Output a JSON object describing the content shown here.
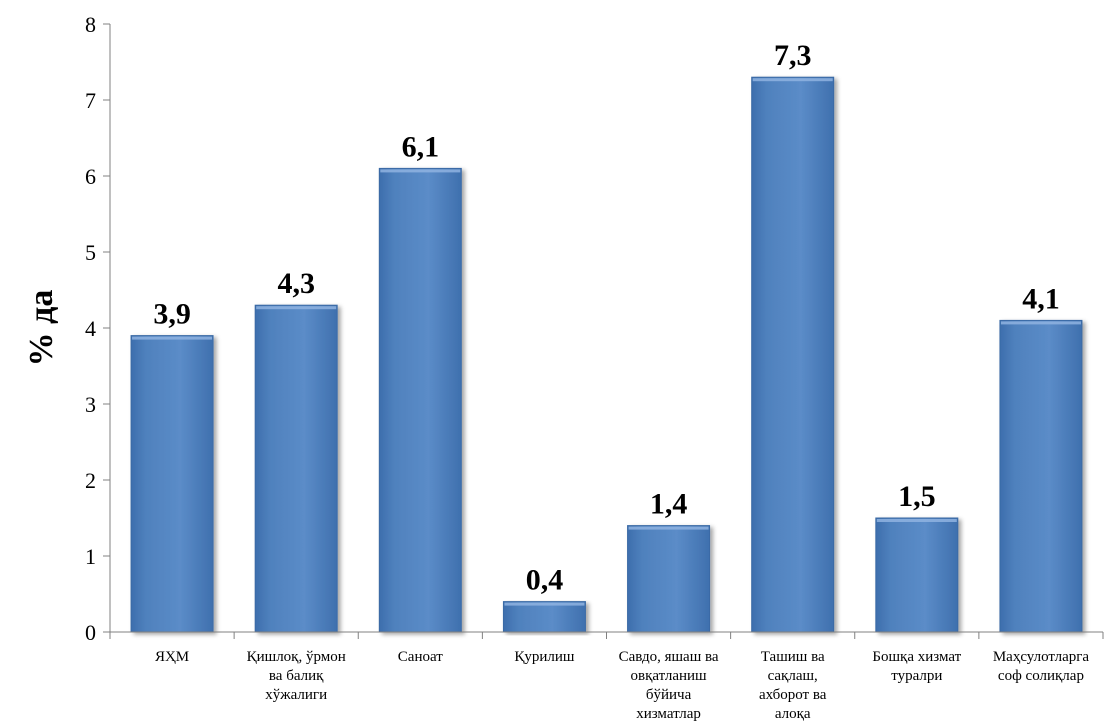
{
  "chart_data": {
    "type": "bar",
    "title": "",
    "xlabel": "",
    "ylabel": "% да",
    "ylim": [
      0,
      8
    ],
    "yticks": [
      0,
      1,
      2,
      3,
      4,
      5,
      6,
      7,
      8
    ],
    "grid": false,
    "legend": "none",
    "categories": [
      "ЯҲМ",
      "Қишлоқ, ўрмон ва балиқ хўжалиги",
      "Саноат",
      "Қурилиш",
      "Савдо, яшаш ва овқатланиш бўйича хизматлар",
      "Ташиш ва сақлаш, ахборот ва алоқа",
      "Бошқа хизмат туралри",
      "Маҳсулотларга соф солиқлар"
    ],
    "category_lines": [
      [
        "ЯҲМ"
      ],
      [
        "Қишлоқ, ўрмон",
        "ва балиқ",
        "хўжалиги"
      ],
      [
        "Саноат"
      ],
      [
        "Қурилиш"
      ],
      [
        "Савдо, яшаш ва",
        "овқатланиш",
        "бўйича",
        "хизматлар"
      ],
      [
        "Ташиш ва",
        "сақлаш,",
        "ахборот ва",
        "алоқа"
      ],
      [
        "Бошқа хизмат",
        "туралри"
      ],
      [
        "Маҳсулотларга",
        "соф солиқлар"
      ]
    ],
    "values": [
      3.9,
      4.3,
      6.1,
      0.4,
      1.4,
      7.3,
      1.5,
      4.1
    ],
    "data_labels": [
      "3,9",
      "4,3",
      "6,1",
      "0,4",
      "1,4",
      "7,3",
      "1,5",
      "4,1"
    ],
    "colors": {
      "bar": "#4F81BD",
      "bar_dark": "#3A6AA5",
      "bar_light": "#6E9BD3",
      "axis": "#808080"
    }
  }
}
